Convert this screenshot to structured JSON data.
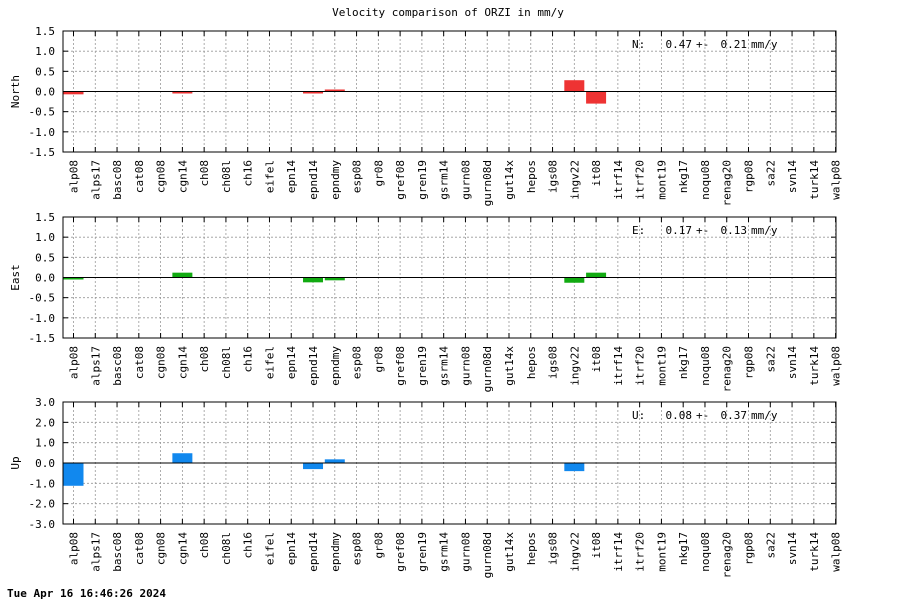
{
  "title": "Velocity comparison of ORZI in mm/y",
  "timestamp": "Tue Apr 16 16:46:26 2024",
  "chart_data": [
    {
      "type": "bar",
      "ylabel": "North",
      "ylim": [
        -1.5,
        1.5
      ],
      "yticks": [
        "1.5",
        "1.0",
        "0.5",
        "0.0",
        "-0.5",
        "-1.0",
        "-1.5"
      ],
      "ytick_values": [
        1.5,
        1.0,
        0.5,
        0.0,
        -0.5,
        -1.0,
        -1.5
      ],
      "grid": true,
      "color": "#ee3333",
      "stat": {
        "label": "N:",
        "value": "0.47",
        "pm": "+-",
        "sigma": "0.21",
        "unit": "mm/y"
      },
      "categories": [
        "alp08",
        "alps17",
        "basc08",
        "cat08",
        "cgn08",
        "cgn14",
        "ch08",
        "ch08l",
        "ch16",
        "eifel",
        "epn14",
        "epnd14",
        "epndmy",
        "esp08",
        "gr08",
        "gref08",
        "gren19",
        "gsrm14",
        "gurn08",
        "gurn08d",
        "gut14x",
        "hepos",
        "igs08",
        "ingv22",
        "it08",
        "itrf14",
        "itrf20",
        "mont19",
        "nkg17",
        "noqu08",
        "renag20",
        "rgp08",
        "sa22",
        "svn14",
        "turk14",
        "walp08"
      ],
      "values": [
        -0.07,
        null,
        null,
        null,
        null,
        -0.04,
        null,
        null,
        null,
        null,
        null,
        -0.02,
        0.05,
        null,
        null,
        null,
        null,
        null,
        null,
        null,
        null,
        null,
        null,
        0.28,
        -0.3,
        null,
        null,
        null,
        null,
        null,
        null,
        null,
        null,
        null,
        null,
        null
      ]
    },
    {
      "type": "bar",
      "ylabel": "East",
      "ylim": [
        -1.5,
        1.5
      ],
      "yticks": [
        "1.5",
        "1.0",
        "0.5",
        "0.0",
        "-0.5",
        "-1.0",
        "-1.5"
      ],
      "ytick_values": [
        1.5,
        1.0,
        0.5,
        0.0,
        -0.5,
        -1.0,
        -1.5
      ],
      "grid": true,
      "color": "#11aa11",
      "stat": {
        "label": "E:",
        "value": "0.17",
        "pm": "+-",
        "sigma": "0.13",
        "unit": "mm/y"
      },
      "categories": [
        "alp08",
        "alps17",
        "basc08",
        "cat08",
        "cgn08",
        "cgn14",
        "ch08",
        "ch08l",
        "ch16",
        "eifel",
        "epn14",
        "epnd14",
        "epndmy",
        "esp08",
        "gr08",
        "gref08",
        "gren19",
        "gsrm14",
        "gurn08",
        "gurn08d",
        "gut14x",
        "hepos",
        "igs08",
        "ingv22",
        "it08",
        "itrf14",
        "itrf20",
        "mont19",
        "nkg17",
        "noqu08",
        "renag20",
        "rgp08",
        "sa22",
        "svn14",
        "turk14",
        "walp08"
      ],
      "values": [
        -0.02,
        null,
        null,
        null,
        null,
        0.12,
        null,
        null,
        null,
        null,
        null,
        -0.12,
        -0.07,
        null,
        null,
        null,
        null,
        null,
        null,
        null,
        null,
        null,
        null,
        -0.13,
        0.12,
        null,
        null,
        null,
        null,
        null,
        null,
        null,
        null,
        null,
        null,
        null
      ]
    },
    {
      "type": "bar",
      "ylabel": "Up",
      "ylim": [
        -3.0,
        3.0
      ],
      "yticks": [
        "3.0",
        "2.0",
        "1.0",
        "0.0",
        "-1.0",
        "-2.0",
        "-3.0"
      ],
      "ytick_values": [
        3.0,
        2.0,
        1.0,
        0.0,
        -1.0,
        -2.0,
        -3.0
      ],
      "grid": true,
      "color": "#1188ee",
      "stat": {
        "label": "U:",
        "value": "0.08",
        "pm": "+-",
        "sigma": "0.37",
        "unit": "mm/y"
      },
      "categories": [
        "alp08",
        "alps17",
        "basc08",
        "cat08",
        "cgn08",
        "cgn14",
        "ch08",
        "ch08l",
        "ch16",
        "eifel",
        "epn14",
        "epnd14",
        "epndmy",
        "esp08",
        "gr08",
        "gref08",
        "gren19",
        "gsrm14",
        "gurn08",
        "gurn08d",
        "gut14x",
        "hepos",
        "igs08",
        "ingv22",
        "it08",
        "itrf14",
        "itrf20",
        "mont19",
        "nkg17",
        "noqu08",
        "renag20",
        "rgp08",
        "sa22",
        "svn14",
        "turk14",
        "walp08"
      ],
      "values": [
        -1.12,
        null,
        null,
        null,
        null,
        0.48,
        null,
        null,
        null,
        null,
        null,
        -0.3,
        0.18,
        null,
        null,
        null,
        null,
        null,
        null,
        null,
        null,
        null,
        null,
        -0.4,
        null,
        null,
        null,
        null,
        null,
        null,
        null,
        null,
        null,
        null,
        null,
        null
      ]
    }
  ]
}
